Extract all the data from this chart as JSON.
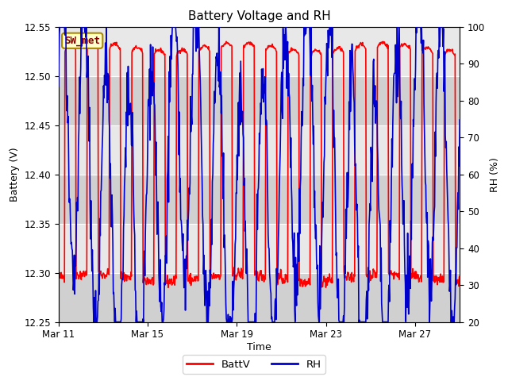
{
  "title": "Battery Voltage and RH",
  "xlabel": "Time",
  "ylabel_left": "Battery (V)",
  "ylabel_right": "RH (%)",
  "ylim_left": [
    12.25,
    12.55
  ],
  "ylim_right": [
    20,
    100
  ],
  "yticks_left": [
    12.25,
    12.3,
    12.35,
    12.4,
    12.45,
    12.5,
    12.55
  ],
  "yticks_right": [
    20,
    30,
    40,
    50,
    60,
    70,
    80,
    90,
    100
  ],
  "xtick_positions": [
    0,
    4,
    8,
    12,
    16
  ],
  "xtick_labels": [
    "Mar 11",
    "Mar 15",
    "Mar 19",
    "Mar 23",
    "Mar 27"
  ],
  "legend_labels": [
    "BattV",
    "RH"
  ],
  "legend_colors": [
    "#ff0000",
    "#0000cc"
  ],
  "station_label": "SW_met",
  "station_box_facecolor": "#ffffcc",
  "station_box_edgecolor": "#aa8800",
  "fig_bg_color": "#ffffff",
  "plot_bg_color": "#e8e8e8",
  "alt_band_color": "#d0d0d0",
  "grid_color": "#ffffff",
  "battv_color": "#ff0000",
  "rh_color": "#0000cc",
  "line_width": 1.2,
  "n_days": 18,
  "seed": 42
}
